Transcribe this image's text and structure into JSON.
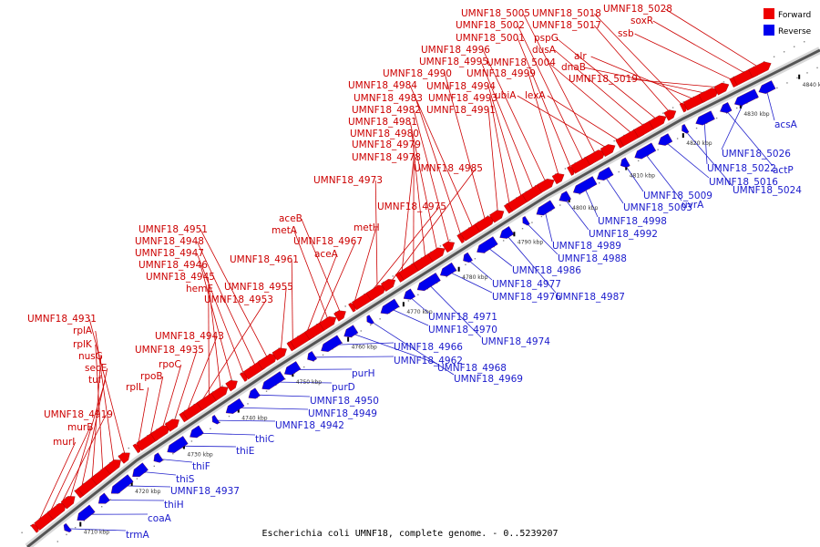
{
  "caption": "Escherichia coli UMNF18, complete genome. - 0..5239207",
  "legend": [
    {
      "label": "Forward",
      "color": "#ee0000"
    },
    {
      "label": "Reverse",
      "color": "#0000ee"
    }
  ],
  "axis": {
    "start_kbp": 4702,
    "end_kbp": 4845,
    "tick_labels_kbp": [
      4710,
      4720,
      4730,
      4740,
      4750,
      4760,
      4770,
      4780,
      4790,
      4800,
      4810,
      4820,
      4830,
      4840
    ]
  },
  "forward_genes": [
    "murI",
    "murB",
    "UMNF18_4919",
    "tuf",
    "secE",
    "nusG",
    "rplK",
    "rplA",
    "UMNF18_4931",
    "rplL",
    "rpoB",
    "rpoC",
    "UMNF18_4935",
    "UMNF18_4943",
    "UMNF18_4953",
    "hemE",
    "UMNF18_4945",
    "UMNF18_4946",
    "UMNF18_4947",
    "UMNF18_4948",
    "UMNF18_4951",
    "UMNF18_4955",
    "UMNF18_4961",
    "aceA",
    "UMNF18_4967",
    "metA",
    "aceB",
    "metH",
    "UMNF18_4975",
    "UMNF18_4973",
    "UMNF18_4985",
    "UMNF18_4978",
    "UMNF18_4979",
    "UMNF18_4980",
    "UMNF18_4981",
    "UMNF18_4982",
    "UMNF18_4983",
    "UMNF18_4984",
    "UMNF18_4990",
    "UMNF18_4991",
    "UMNF18_4993",
    "UMNF18_4994",
    "UMNF18_4995",
    "UMNF18_4996",
    "UMNF18_4999",
    "UMNF18_5001",
    "UMNF18_5002",
    "UMNF18_5005",
    "ubiA",
    "lexA",
    "UMNF18_5004",
    "dusA",
    "pspG",
    "UMNF18_5017",
    "UMNF18_5018",
    "alr",
    "dnaB",
    "UMNF18_5019",
    "ssb",
    "soxR",
    "UMNF18_5028"
  ],
  "reverse_genes": [
    "trmA",
    "coaA",
    "thiH",
    "UMNF18_4937",
    "thiS",
    "thiF",
    "thiE",
    "thiC",
    "UMNF18_4942",
    "UMNF18_4949",
    "UMNF18_4950",
    "purD",
    "purH",
    "UMNF18_4962",
    "UMNF18_4966",
    "UMNF18_4968",
    "UMNF18_4969",
    "UMNF18_4970",
    "UMNF18_4971",
    "UMNF18_4974",
    "UMNF18_4976",
    "UMNF18_4977",
    "UMNF18_4986",
    "UMNF18_4987",
    "UMNF18_4988",
    "UMNF18_4989",
    "UMNF18_4992",
    "UMNF18_4998",
    "UMNF18_5003",
    "UMNF18_5009",
    "uvrA",
    "UMNF18_5016",
    "UMNF18_5024",
    "UMNF18_5022",
    "actP",
    "UMNF18_5026",
    "acsA"
  ]
}
